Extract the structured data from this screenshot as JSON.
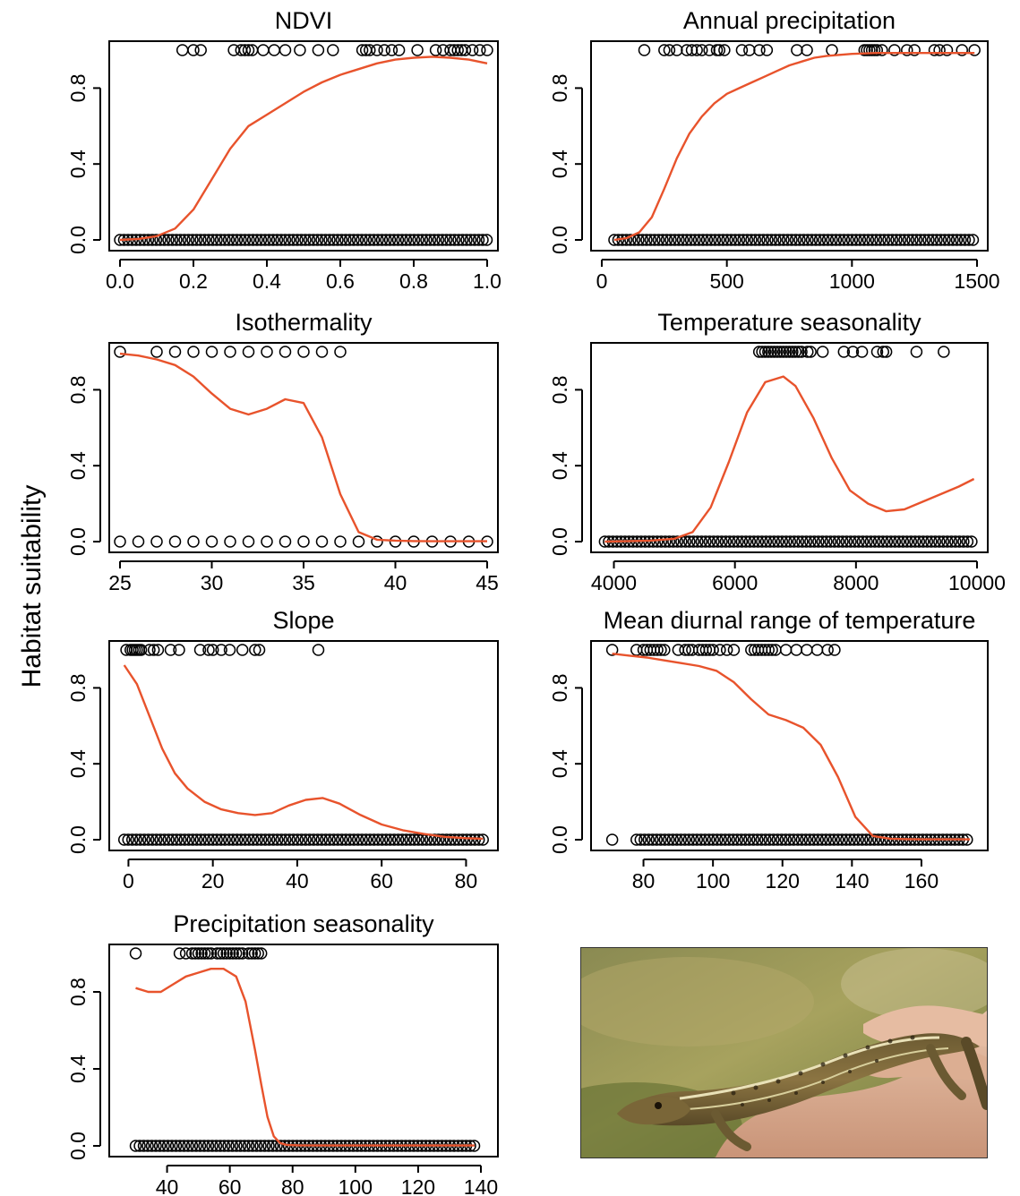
{
  "figure": {
    "ylabel": "Habitat suitability",
    "photo_subject": "lizard-on-hand-photo"
  },
  "chart_data": [
    {
      "type": "scatter",
      "title": "NDVI",
      "xlim": [
        0,
        1
      ],
      "ylim": [
        0,
        1
      ],
      "xticks": [
        0.0,
        0.2,
        0.4,
        0.6,
        0.8,
        1.0
      ],
      "xtick_labels": [
        "0.0",
        "0.2",
        "0.4",
        "0.6",
        "0.8",
        "1.0"
      ],
      "yticks": [
        0,
        0.4,
        0.8
      ],
      "ytick_labels": [
        "0.0",
        "0.4",
        "0.8"
      ],
      "curve_color": "#e8532c",
      "presence_x": [
        0.17,
        0.2,
        0.22,
        0.31,
        0.33,
        0.34,
        0.35,
        0.36,
        0.39,
        0.42,
        0.45,
        0.49,
        0.54,
        0.58,
        0.66,
        0.67,
        0.68,
        0.7,
        0.72,
        0.74,
        0.76,
        0.81,
        0.86,
        0.88,
        0.9,
        0.91,
        0.92,
        0.93,
        0.94,
        0.96,
        0.98,
        1.0
      ],
      "absence_range": [
        0.0,
        1.0
      ],
      "curve_x": [
        0.0,
        0.05,
        0.1,
        0.15,
        0.2,
        0.25,
        0.3,
        0.35,
        0.4,
        0.45,
        0.5,
        0.55,
        0.6,
        0.65,
        0.7,
        0.75,
        0.8,
        0.85,
        0.9,
        0.95,
        1.0
      ],
      "curve_y": [
        0.0,
        0.005,
        0.02,
        0.06,
        0.16,
        0.32,
        0.48,
        0.6,
        0.66,
        0.72,
        0.78,
        0.83,
        0.87,
        0.9,
        0.93,
        0.95,
        0.96,
        0.965,
        0.96,
        0.95,
        0.93
      ]
    },
    {
      "type": "scatter",
      "title": "Annual precipitation",
      "xlim": [
        0,
        1500
      ],
      "ylim": [
        0,
        1
      ],
      "xticks": [
        0,
        500,
        1000,
        1500
      ],
      "xtick_labels": [
        "0",
        "500",
        "1000",
        "1500"
      ],
      "yticks": [
        0,
        0.4,
        0.8
      ],
      "ytick_labels": [
        "0.0",
        "0.4",
        "0.8"
      ],
      "curve_color": "#e8532c",
      "presence_x": [
        170,
        250,
        270,
        300,
        340,
        360,
        380,
        400,
        430,
        460,
        470,
        490,
        560,
        590,
        630,
        660,
        780,
        820,
        920,
        1050,
        1060,
        1070,
        1080,
        1090,
        1100,
        1120,
        1170,
        1220,
        1250,
        1330,
        1350,
        1380,
        1440,
        1490
      ],
      "absence_range": [
        50,
        1490
      ],
      "curve_x": [
        50,
        100,
        150,
        200,
        250,
        300,
        350,
        400,
        450,
        500,
        550,
        600,
        650,
        700,
        750,
        800,
        850,
        900,
        950,
        1000,
        1100,
        1200,
        1300,
        1400,
        1490
      ],
      "curve_y": [
        0.0,
        0.01,
        0.04,
        0.12,
        0.27,
        0.43,
        0.56,
        0.65,
        0.72,
        0.77,
        0.8,
        0.83,
        0.86,
        0.89,
        0.92,
        0.94,
        0.96,
        0.97,
        0.975,
        0.98,
        0.985,
        0.985,
        0.985,
        0.985,
        0.985
      ]
    },
    {
      "type": "scatter",
      "title": "Isothermality",
      "xlim": [
        25,
        45
      ],
      "ylim": [
        0,
        1
      ],
      "xticks": [
        25,
        30,
        35,
        40,
        45
      ],
      "xtick_labels": [
        "25",
        "30",
        "35",
        "40",
        "45"
      ],
      "yticks": [
        0,
        0.4,
        0.8
      ],
      "ytick_labels": [
        "0.0",
        "0.4",
        "0.8"
      ],
      "curve_color": "#e8532c",
      "presence_x": [
        25,
        27,
        28,
        29,
        30,
        31,
        32,
        33,
        34,
        35,
        36,
        37
      ],
      "absence_x": [
        25,
        26,
        27,
        28,
        29,
        30,
        31,
        32,
        33,
        34,
        35,
        36,
        37,
        38,
        39,
        40,
        41,
        42,
        43,
        44,
        45
      ],
      "curve_x": [
        25,
        26,
        27,
        28,
        29,
        30,
        31,
        32,
        33,
        34,
        35,
        36,
        37,
        38,
        39,
        40,
        41,
        42,
        43,
        44,
        45
      ],
      "curve_y": [
        0.99,
        0.98,
        0.96,
        0.93,
        0.87,
        0.78,
        0.7,
        0.67,
        0.7,
        0.75,
        0.73,
        0.55,
        0.25,
        0.05,
        0.01,
        0.005,
        0.003,
        0.002,
        0.002,
        0.002,
        0.002
      ]
    },
    {
      "type": "scatter",
      "title": "Temperature seasonality",
      "xlim": [
        3800,
        10000
      ],
      "ylim": [
        0,
        1
      ],
      "xticks": [
        4000,
        6000,
        8000,
        10000
      ],
      "xtick_labels": [
        "4000",
        "6000",
        "8000",
        "10000"
      ],
      "yticks": [
        0,
        0.4,
        0.8
      ],
      "ytick_labels": [
        "0.0",
        "0.4",
        "0.8"
      ],
      "curve_color": "#e8532c",
      "presence_x": [
        6400,
        6450,
        6500,
        6550,
        6600,
        6650,
        6700,
        6750,
        6800,
        6850,
        6900,
        6950,
        7000,
        7050,
        7100,
        7200,
        7250,
        7450,
        7800,
        7950,
        8100,
        8350,
        8450,
        8500,
        9000,
        9450
      ],
      "absence_range": [
        3850,
        9950
      ],
      "curve_x": [
        3850,
        4200,
        4600,
        5000,
        5300,
        5600,
        5900,
        6200,
        6500,
        6800,
        7000,
        7300,
        7600,
        7900,
        8200,
        8500,
        8800,
        9100,
        9400,
        9700,
        9950
      ],
      "curve_y": [
        0.0,
        0.002,
        0.005,
        0.015,
        0.05,
        0.18,
        0.42,
        0.68,
        0.84,
        0.87,
        0.82,
        0.65,
        0.44,
        0.27,
        0.2,
        0.16,
        0.17,
        0.21,
        0.25,
        0.29,
        0.33
      ]
    },
    {
      "type": "scatter",
      "title": "Slope",
      "xlim": [
        -2,
        85
      ],
      "ylim": [
        0,
        1
      ],
      "xticks": [
        0,
        20,
        40,
        60,
        80
      ],
      "xtick_labels": [
        "0",
        "20",
        "40",
        "60",
        "80"
      ],
      "yticks": [
        0,
        0.4,
        0.8
      ],
      "ytick_labels": [
        "0.0",
        "0.4",
        "0.8"
      ],
      "curve_color": "#e8532c",
      "presence_x": [
        -0.5,
        0.5,
        1,
        1.5,
        2,
        2.5,
        3,
        5,
        6,
        7,
        10,
        12,
        17,
        19,
        20,
        22,
        24,
        27,
        30,
        31,
        45
      ],
      "absence_range": [
        -1,
        84
      ],
      "curve_x": [
        -1,
        2,
        5,
        8,
        11,
        14,
        18,
        22,
        26,
        30,
        34,
        38,
        42,
        46,
        50,
        55,
        60,
        65,
        70,
        75,
        80,
        84
      ],
      "curve_y": [
        0.92,
        0.82,
        0.65,
        0.48,
        0.35,
        0.27,
        0.2,
        0.16,
        0.14,
        0.13,
        0.14,
        0.18,
        0.21,
        0.22,
        0.19,
        0.13,
        0.08,
        0.05,
        0.03,
        0.015,
        0.008,
        0.005
      ]
    },
    {
      "type": "scatter",
      "title": "Mean diurnal range of temperature",
      "xlim": [
        68,
        176
      ],
      "ylim": [
        0,
        1
      ],
      "xticks": [
        80,
        100,
        120,
        140,
        160
      ],
      "xtick_labels": [
        "80",
        "100",
        "120",
        "140",
        "160"
      ],
      "yticks": [
        0,
        0.4,
        0.8
      ],
      "ytick_labels": [
        "0.0",
        "0.4",
        "0.8"
      ],
      "curve_color": "#e8532c",
      "presence_x": [
        71,
        78,
        80,
        81,
        82,
        83,
        84,
        85,
        86,
        90,
        92,
        93,
        94,
        96,
        97,
        98,
        99,
        100,
        102,
        104,
        106,
        111,
        112,
        113,
        114,
        115,
        116,
        117,
        118,
        121,
        124,
        127,
        130,
        133,
        135
      ],
      "absence_x": [
        71
      ],
      "absence_range": [
        78,
        174
      ],
      "curve_x": [
        71,
        76,
        81,
        86,
        91,
        96,
        101,
        106,
        111,
        116,
        121,
        126,
        131,
        136,
        141,
        146,
        151,
        156,
        161,
        166,
        171,
        174
      ],
      "curve_y": [
        0.98,
        0.97,
        0.96,
        0.945,
        0.93,
        0.915,
        0.89,
        0.83,
        0.74,
        0.66,
        0.63,
        0.59,
        0.5,
        0.33,
        0.12,
        0.02,
        0.005,
        0.003,
        0.002,
        0.002,
        0.002,
        0.002
      ]
    },
    {
      "type": "scatter",
      "title": "Precipitation seasonality",
      "xlim": [
        25,
        142
      ],
      "ylim": [
        0,
        1
      ],
      "xticks": [
        40,
        60,
        80,
        100,
        120,
        140
      ],
      "xtick_labels": [
        "40",
        "60",
        "80",
        "100",
        "120",
        "140"
      ],
      "yticks": [
        0,
        0.4,
        0.8
      ],
      "ytick_labels": [
        "0.0",
        "0.4",
        "0.8"
      ],
      "curve_color": "#e8532c",
      "presence_x": [
        30,
        44,
        46,
        48,
        49,
        50,
        51,
        52,
        53,
        54,
        56,
        57,
        58,
        59,
        60,
        61,
        62,
        63,
        64,
        66,
        67,
        68,
        69,
        70
      ],
      "absence_range": [
        30,
        138
      ],
      "curve_x": [
        30,
        34,
        38,
        42,
        46,
        50,
        54,
        58,
        62,
        65,
        68,
        70,
        72,
        74,
        76,
        78,
        82,
        90,
        100,
        110,
        120,
        130,
        138
      ],
      "curve_y": [
        0.82,
        0.8,
        0.8,
        0.84,
        0.88,
        0.9,
        0.92,
        0.92,
        0.88,
        0.75,
        0.5,
        0.32,
        0.15,
        0.05,
        0.015,
        0.005,
        0.003,
        0.002,
        0.002,
        0.002,
        0.002,
        0.002,
        0.002
      ]
    }
  ]
}
